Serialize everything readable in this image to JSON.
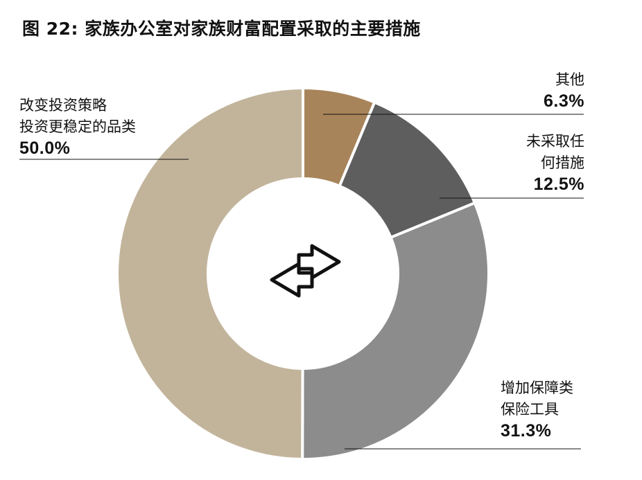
{
  "chart_data": {
    "type": "pie",
    "title": "图 22: 家族办公室对家族财富配置采取的主要措施",
    "slices": [
      {
        "key": "other",
        "label_lines": [
          "其他"
        ],
        "value": 6.3,
        "value_text": "6.3%",
        "color": "#a8845a"
      },
      {
        "key": "no-action",
        "label_lines": [
          "未采取任",
          "何措施"
        ],
        "value": 12.5,
        "value_text": "12.5%",
        "color": "#5e5e5e"
      },
      {
        "key": "insurance",
        "label_lines": [
          "增加保障类",
          "保险工具"
        ],
        "value": 31.3,
        "value_text": "31.3%",
        "color": "#8c8c8c"
      },
      {
        "key": "stable-investment",
        "label_lines": [
          "改变投资策略",
          "投资更稳定的品类"
        ],
        "value": 50.0,
        "value_text": "50.0%",
        "color": "#c2b49b"
      }
    ],
    "center_icon": "swap-arrows-icon",
    "start_angle": "12 o'clock",
    "direction": "clockwise",
    "style": "donut"
  }
}
